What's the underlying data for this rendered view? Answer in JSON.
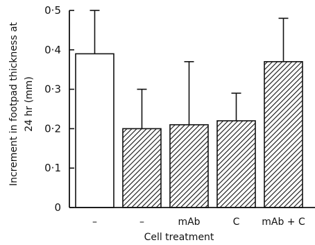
{
  "chart_data": {
    "type": "bar",
    "title": "",
    "xlabel": "Cell treatment",
    "ylabel_line1": "Increment in footpad thickness at",
    "ylabel_line2": "24 hr (mm)",
    "ylim": [
      0,
      0.5
    ],
    "yticks": [
      0,
      0.1,
      0.2,
      0.3,
      0.4,
      0.5
    ],
    "ytick_labels": [
      "0",
      "0·1",
      "0·2",
      "0·3",
      "0·4",
      "0·5"
    ],
    "grid": false,
    "categories": [
      "–",
      "–",
      "mAb",
      "C",
      "mAb + C"
    ],
    "values": [
      0.39,
      0.2,
      0.21,
      0.22,
      0.37
    ],
    "error_upper": [
      0.5,
      0.3,
      0.37,
      0.29,
      0.48
    ],
    "fills": [
      "open",
      "hatched",
      "hatched",
      "hatched",
      "hatched"
    ]
  }
}
